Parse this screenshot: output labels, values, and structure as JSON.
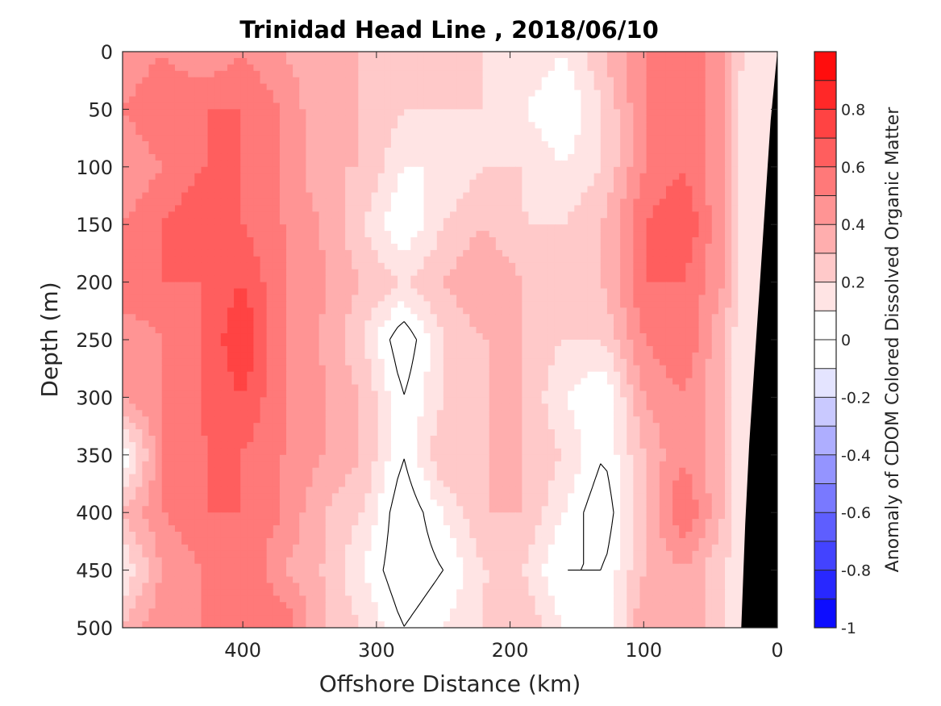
{
  "chart_data": {
    "type": "heatmap",
    "title": "Trinidad Head Line , 2018/06/10",
    "xlabel": "Offshore Distance (km)",
    "ylabel": "Depth (m)",
    "colorbar_label": "Anomaly of CDOM Colored Dissolved Organic Matter",
    "xlim": [
      490,
      0
    ],
    "ylim": [
      0,
      500
    ],
    "x_ticks": [
      400,
      300,
      200,
      100,
      0
    ],
    "y_ticks": [
      0,
      50,
      100,
      150,
      200,
      250,
      300,
      350,
      400,
      450,
      500
    ],
    "clim": [
      -1,
      1
    ],
    "colorbar_ticks": [
      0.8,
      0.6,
      0.4,
      0.2,
      0,
      -0.2,
      -0.4,
      -0.6,
      -0.8,
      -1
    ],
    "contour_interval": 0.1,
    "zero_contour_color": "#000000",
    "bathymetry_color": "#000000",
    "bathymetry": [
      [
        0,
        0
      ],
      [
        5,
        60
      ],
      [
        9,
        130
      ],
      [
        13,
        200
      ],
      [
        17,
        270
      ],
      [
        21,
        340
      ],
      [
        24,
        410
      ],
      [
        27,
        500
      ]
    ],
    "x": [
      490,
      460,
      430,
      400,
      370,
      340,
      310,
      280,
      250,
      220,
      190,
      160,
      130,
      100,
      70,
      40,
      25
    ],
    "y": [
      0,
      50,
      100,
      150,
      200,
      250,
      300,
      350,
      400,
      450,
      500
    ],
    "z": [
      [
        0.4,
        0.5,
        0.4,
        0.5,
        0.4,
        0.3,
        0.3,
        0.2,
        0.2,
        0.2,
        0.2,
        0.1,
        0.3,
        0.5,
        0.6,
        0.4,
        0.2
      ],
      [
        0.5,
        0.6,
        0.6,
        0.6,
        0.5,
        0.3,
        0.3,
        0.2,
        0.2,
        0.2,
        0.1,
        0.0,
        0.2,
        0.5,
        0.6,
        0.4,
        0.1
      ],
      [
        0.4,
        0.5,
        0.6,
        0.6,
        0.5,
        0.3,
        0.3,
        0.1,
        0.1,
        0.2,
        0.2,
        0.1,
        0.2,
        0.5,
        0.6,
        0.4,
        0.1
      ],
      [
        0.5,
        0.6,
        0.7,
        0.6,
        0.5,
        0.4,
        0.2,
        0.0,
        0.2,
        0.3,
        0.2,
        0.2,
        0.3,
        0.6,
        0.7,
        0.4,
        0.1
      ],
      [
        0.6,
        0.6,
        0.6,
        0.7,
        0.5,
        0.4,
        0.3,
        0.2,
        0.3,
        0.4,
        0.3,
        0.2,
        0.3,
        0.6,
        0.6,
        0.4,
        0.1
      ],
      [
        0.4,
        0.5,
        0.6,
        0.8,
        0.5,
        0.4,
        0.2,
        -0.1,
        0.2,
        0.3,
        0.3,
        0.2,
        0.2,
        0.5,
        0.6,
        0.3,
        0.1
      ],
      [
        0.4,
        0.5,
        0.6,
        0.7,
        0.5,
        0.4,
        0.3,
        0.0,
        0.2,
        0.3,
        0.3,
        0.1,
        0.0,
        0.4,
        0.5,
        0.3,
        0.1
      ],
      [
        0.0,
        0.5,
        0.6,
        0.6,
        0.5,
        0.4,
        0.3,
        0.0,
        0.3,
        0.3,
        0.3,
        0.2,
        0.0,
        0.3,
        0.5,
        0.3,
        0.1
      ],
      [
        0.3,
        0.5,
        0.6,
        0.6,
        0.5,
        0.3,
        0.2,
        -0.1,
        0.1,
        0.3,
        0.3,
        0.1,
        -0.1,
        0.3,
        0.6,
        0.3,
        0.1
      ],
      [
        0.1,
        0.4,
        0.5,
        0.6,
        0.4,
        0.3,
        0.1,
        -0.1,
        0.0,
        0.2,
        0.2,
        0.0,
        0.0,
        0.3,
        0.4,
        0.2,
        0.1
      ],
      [
        0.3,
        0.5,
        0.5,
        0.6,
        0.6,
        0.3,
        0.2,
        0.0,
        0.1,
        0.2,
        0.3,
        0.1,
        0.0,
        0.4,
        0.4,
        0.2,
        0.1
      ]
    ]
  }
}
